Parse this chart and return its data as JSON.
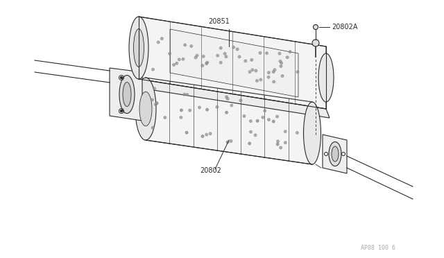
{
  "bg_color": "#ffffff",
  "line_color": "#2a2a2a",
  "label_color": "#2a2a2a",
  "watermark_color": "#aaaaaa",
  "watermark_text": "AP08 100 6",
  "fig_width": 6.4,
  "fig_height": 3.72,
  "dpi": 100
}
